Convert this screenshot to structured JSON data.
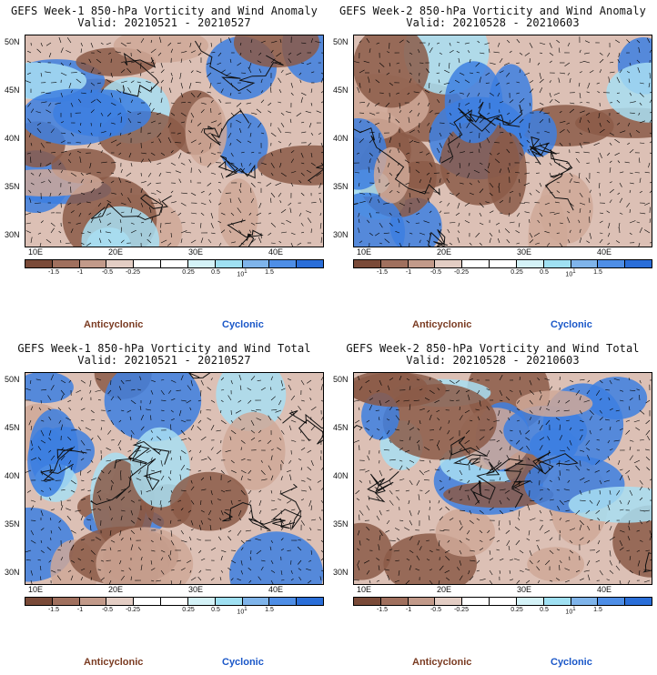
{
  "panels": [
    {
      "title": "GEFS Week-1 850-hPa Vorticity and Wind Anomaly",
      "valid": "Valid: 20210521 - 20210527",
      "seed": 11
    },
    {
      "title": "GEFS Week-2 850-hPa Vorticity and Wind Anomaly",
      "valid": "Valid: 20210528 - 20210603",
      "seed": 23
    },
    {
      "title": "GEFS Week-1 850-hPa Vorticity and Wind Total",
      "valid": "Valid: 20210521 - 20210527",
      "seed": 37
    },
    {
      "title": "GEFS Week-2 850-hPa Vorticity and Wind Total",
      "valid": "Valid: 20210528 - 20210603",
      "seed": 51
    }
  ],
  "axes": {
    "lat_labels": [
      "50N",
      "45N",
      "40N",
      "35N",
      "30N"
    ],
    "lon_labels": [
      "10E",
      "20E",
      "30E",
      "40E"
    ]
  },
  "colorbar": {
    "colors": [
      "#7a4a38",
      "#a0705e",
      "#c29a8a",
      "#e3cdc4",
      "#ffffff",
      "#ffffff",
      "#d4f2f7",
      "#9fe0f2",
      "#7fb4ea",
      "#4e8ee6",
      "#2a6ed8"
    ],
    "tick_labels": [
      "-1.5",
      "-1",
      "-0.5",
      "-0.25",
      "0.25",
      "0.5",
      "1.5"
    ],
    "units_label": "10",
    "units_exp": "1"
  },
  "legend": {
    "anticyclonic": "Anticyclonic",
    "cyclonic": "Cyclonic"
  },
  "colors": {
    "anticyclonic": "#7a3b22",
    "cyclonic": "#1a57c8",
    "brown_dark": "#8b5a48",
    "brown_light": "#cfa898",
    "blue_dark": "#3d7fe0",
    "blue_light": "#a8def2"
  }
}
